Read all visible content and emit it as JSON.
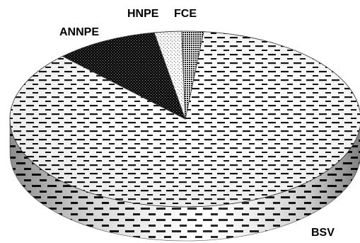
{
  "chart_data": {
    "type": "pie",
    "style": "3d",
    "title": "",
    "legend": "none",
    "slices": [
      {
        "label": "BSV",
        "value": 86.0,
        "pattern": "dashes"
      },
      {
        "label": "ANNPE",
        "value": 9.5,
        "pattern": "dark-dots"
      },
      {
        "label": "HNPE",
        "value": 2.5,
        "pattern": "light-dots"
      },
      {
        "label": "FCE",
        "value": 2.0,
        "pattern": "grid"
      }
    ]
  }
}
